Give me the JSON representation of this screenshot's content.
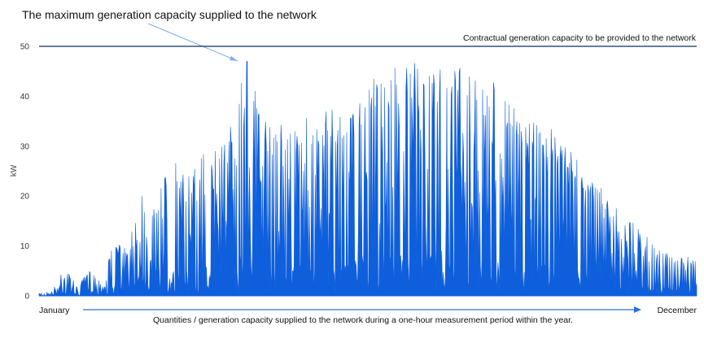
{
  "chart_data": {
    "type": "area",
    "title": "The maximum generation capacity supplied to the network",
    "ylabel": "kW",
    "xlabel": "Quantities / generation capacity supplied to the network during a one-hour measurement period within the year.",
    "x_start_label": "January",
    "x_end_label": "December",
    "ylim": [
      0,
      50
    ],
    "yticks": [
      0,
      10,
      20,
      30,
      40,
      50
    ],
    "grid": false,
    "contract_line": {
      "value": 50,
      "label": "Contractual generation capacity to be provided to the network"
    },
    "series": [
      {
        "color": "#0f5fdc",
        "x": [
          1,
          8,
          15,
          22,
          29,
          36,
          43,
          50,
          57,
          64,
          71,
          78,
          85,
          92,
          99,
          106,
          113,
          120,
          127,
          134,
          141,
          148,
          155,
          162,
          169,
          176,
          183,
          190,
          197,
          204,
          211,
          218,
          225,
          232,
          239,
          246,
          253,
          260,
          267,
          274,
          281,
          288,
          295,
          302,
          309,
          316,
          323,
          330,
          337,
          344,
          351,
          358,
          365
        ],
        "values": [
          0.5,
          1,
          6,
          2,
          5,
          3,
          12,
          9,
          21,
          17,
          26,
          27,
          25,
          29,
          32,
          33,
          47,
          46,
          35,
          35,
          35,
          36,
          35,
          38,
          36,
          41,
          44,
          46,
          47,
          47,
          47,
          47,
          46,
          47,
          45,
          44,
          43,
          40,
          36,
          35,
          34,
          33,
          30,
          26,
          23,
          20,
          17,
          15,
          12,
          10,
          8,
          8,
          7.5
        ],
        "peak": {
          "day": 116,
          "value": 47
        }
      }
    ]
  }
}
